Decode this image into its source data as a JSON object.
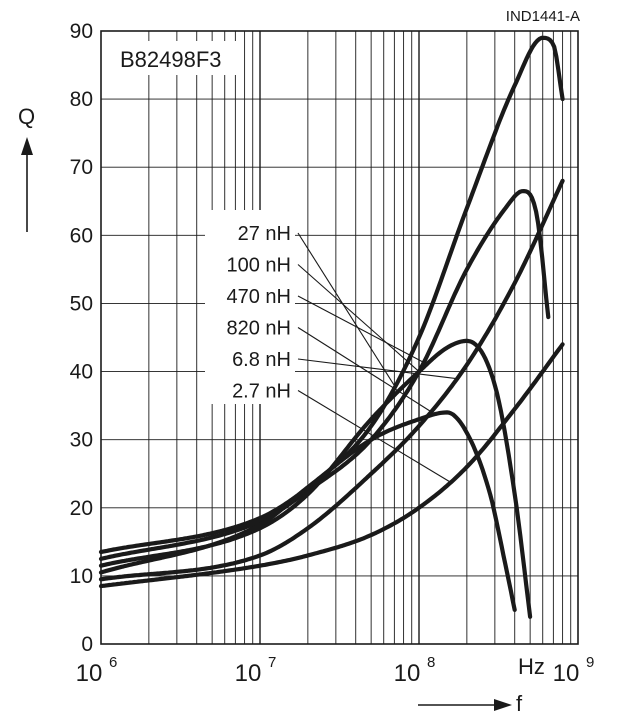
{
  "figure_code": "IND1441-A",
  "chart_data": {
    "type": "line",
    "title": "B82498F3",
    "ylabel": "Q",
    "xlabel": "f",
    "x_unit": "Hz",
    "x_scale": "log",
    "xlim": [
      1000000,
      1000000000
    ],
    "ylim": [
      0,
      90
    ],
    "x_ticks": [
      {
        "base": "10",
        "exp": "6"
      },
      {
        "base": "10",
        "exp": "7"
      },
      {
        "base": "10",
        "exp": "8"
      },
      {
        "base": "10",
        "exp": "9"
      }
    ],
    "y_ticks": [
      "0",
      "10",
      "20",
      "30",
      "40",
      "50",
      "60",
      "70",
      "80",
      "90"
    ],
    "grid": true,
    "series": [
      {
        "name": "27 nH",
        "points": [
          [
            1000000,
            13.5
          ],
          [
            10000000,
            18.5
          ],
          [
            20000000,
            23
          ],
          [
            50000000,
            32
          ],
          [
            100000000,
            45
          ],
          [
            200000000,
            64
          ],
          [
            400000000,
            82
          ],
          [
            600000000,
            89
          ],
          [
            700000000,
            88
          ],
          [
            800000000,
            80
          ]
        ]
      },
      {
        "name": "100 nH",
        "points": [
          [
            1000000,
            12.5
          ],
          [
            10000000,
            18
          ],
          [
            20000000,
            22.5
          ],
          [
            50000000,
            30
          ],
          [
            100000000,
            40
          ],
          [
            200000000,
            55
          ],
          [
            350000000,
            64
          ],
          [
            450000000,
            66.5
          ],
          [
            550000000,
            63
          ],
          [
            650000000,
            48
          ]
        ]
      },
      {
        "name": "470 nH",
        "points": [
          [
            1000000,
            11.5
          ],
          [
            10000000,
            17
          ],
          [
            20000000,
            22
          ],
          [
            50000000,
            33
          ],
          [
            100000000,
            40
          ],
          [
            150000000,
            43.5
          ],
          [
            200000000,
            44.5
          ],
          [
            300000000,
            38
          ],
          [
            400000000,
            22
          ],
          [
            500000000,
            4
          ]
        ]
      },
      {
        "name": "820 nH",
        "points": [
          [
            1000000,
            10.5
          ],
          [
            10000000,
            17.5
          ],
          [
            20000000,
            23
          ],
          [
            50000000,
            30
          ],
          [
            100000000,
            33
          ],
          [
            150000000,
            34
          ],
          [
            200000000,
            31
          ],
          [
            280000000,
            22
          ],
          [
            340000000,
            13
          ],
          [
            400000000,
            5
          ]
        ]
      },
      {
        "name": "6.8 nH",
        "points": [
          [
            1000000,
            9.5
          ],
          [
            10000000,
            13
          ],
          [
            20000000,
            17
          ],
          [
            50000000,
            25
          ],
          [
            100000000,
            32
          ],
          [
            200000000,
            41
          ],
          [
            400000000,
            53
          ],
          [
            800000000,
            68
          ]
        ]
      },
      {
        "name": "2.7 nH",
        "points": [
          [
            1000000,
            8.5
          ],
          [
            10000000,
            11.5
          ],
          [
            20000000,
            13
          ],
          [
            50000000,
            16
          ],
          [
            100000000,
            20
          ],
          [
            200000000,
            26
          ],
          [
            400000000,
            34.5
          ],
          [
            800000000,
            44
          ]
        ]
      }
    ]
  }
}
